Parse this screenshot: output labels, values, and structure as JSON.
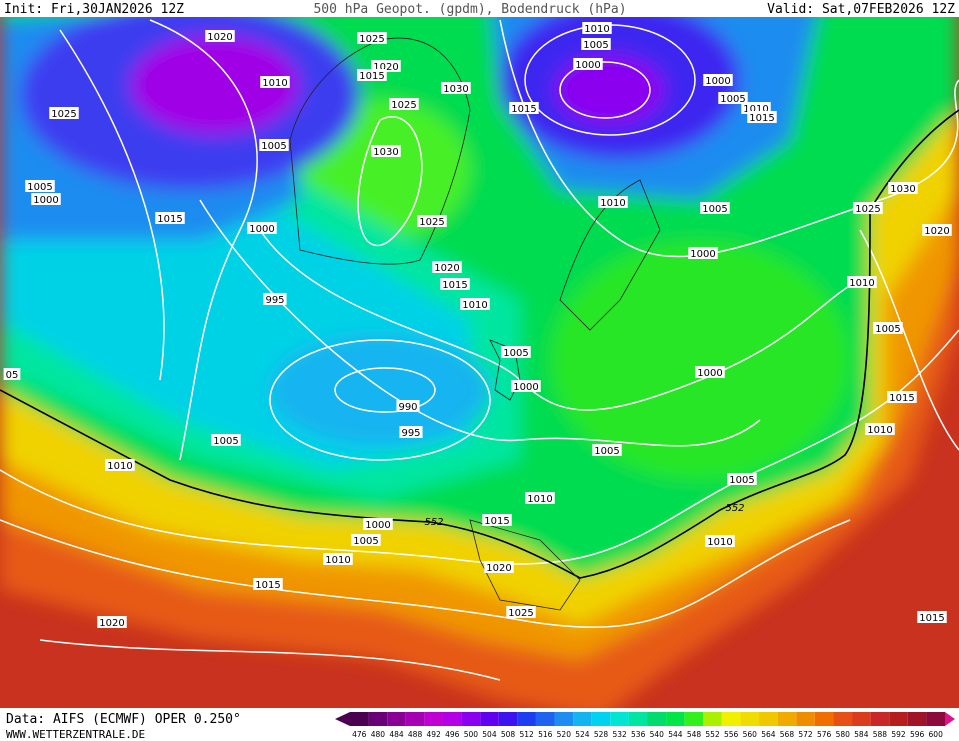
{
  "header": {
    "init": "Init: Fri,30JAN2026 12Z",
    "title": "500 hPa Geopot. (gpdm), Bodendruck (hPa)",
    "valid": "Valid: Sat,07FEB2026 12Z"
  },
  "isobar_labels": [
    "1020",
    "1025",
    "1020",
    "1015",
    "1010",
    "1005",
    "1000",
    "1030",
    "1025",
    "1015",
    "1010",
    "1000",
    "1005",
    "1010",
    "1015",
    "1025",
    "1005",
    "1030",
    "1005",
    "1000",
    "1015",
    "1025",
    "1010",
    "1005",
    "1025",
    "1030",
    "1020",
    "1000",
    "1020",
    "1015",
    "1000",
    "1010",
    "995",
    "1010",
    "1005",
    "1005",
    "05",
    "1000",
    "1000",
    "990",
    "1015",
    "995",
    "1010",
    "1005",
    "1010",
    "1005",
    "1005",
    "1010",
    "1000",
    "1015",
    "1005",
    "1010",
    "1010",
    "1020",
    "1015",
    "1025",
    "1020",
    "1015"
  ],
  "contour_labels": [
    "552",
    "552"
  ],
  "legend": {
    "values": [
      476,
      480,
      484,
      488,
      492,
      496,
      500,
      504,
      508,
      512,
      516,
      520,
      524,
      528,
      532,
      536,
      540,
      544,
      548,
      552,
      556,
      560,
      564,
      568,
      572,
      576,
      580,
      584,
      588,
      592,
      596,
      600
    ],
    "colors": [
      "#4b0050",
      "#6a0078",
      "#8a0096",
      "#a600b4",
      "#c000d2",
      "#b400e6",
      "#8c00f0",
      "#6400f0",
      "#3c14f0",
      "#1e3cf0",
      "#1e64f0",
      "#1e8cf0",
      "#14b4f0",
      "#00d2f0",
      "#00e6d2",
      "#00e6a0",
      "#00dc6e",
      "#00e646",
      "#32f01e",
      "#aaf000",
      "#f0f000",
      "#f0dc00",
      "#f0c800",
      "#f0aa00",
      "#f08c00",
      "#f06e00",
      "#e65014",
      "#dc3c1e",
      "#c82828",
      "#b41e1e",
      "#a01428",
      "#8c0a3c"
    ]
  },
  "footer": {
    "data": "Data: AIFS (ECMWF) OPER 0.250°",
    "site": "WWW.WETTERZENTRALE.DE"
  }
}
